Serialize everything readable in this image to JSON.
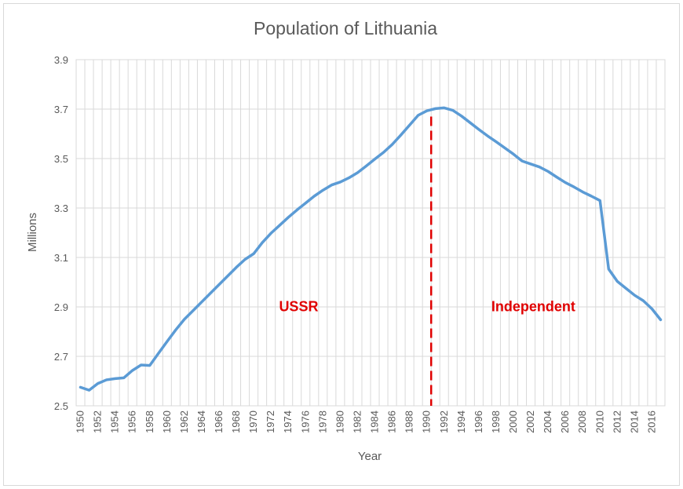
{
  "chart_data": {
    "type": "line",
    "title": "Population of Lithuania",
    "xlabel": "Year",
    "ylabel": "Millions",
    "ylim": [
      2.5,
      3.9
    ],
    "yticks": [
      "2.5",
      "2.7",
      "2.9",
      "3.1",
      "3.3",
      "3.5",
      "3.7",
      "3.9"
    ],
    "xlim": [
      1950,
      2017
    ],
    "xtick_labels": [
      "1950",
      "1952",
      "1954",
      "1956",
      "1958",
      "1960",
      "1962",
      "1964",
      "1966",
      "1968",
      "1970",
      "1972",
      "1974",
      "1976",
      "1978",
      "1980",
      "1982",
      "1984",
      "1986",
      "1988",
      "1990",
      "1992",
      "1994",
      "1996",
      "1998",
      "2000",
      "2002",
      "2004",
      "2006",
      "2008",
      "2010",
      "2012",
      "2014",
      "2016"
    ],
    "grid": true,
    "legend": "none",
    "series": [
      {
        "color": "#5b9bd5",
        "x": [
          1950,
          1951,
          1952,
          1953,
          1954,
          1955,
          1956,
          1957,
          1958,
          1959,
          1960,
          1961,
          1962,
          1963,
          1964,
          1965,
          1966,
          1967,
          1968,
          1969,
          1970,
          1971,
          1972,
          1973,
          1974,
          1975,
          1976,
          1977,
          1978,
          1979,
          1980,
          1981,
          1982,
          1983,
          1984,
          1985,
          1986,
          1987,
          1988,
          1989,
          1990,
          1991,
          1992,
          1993,
          1994,
          1995,
          1996,
          1997,
          1998,
          1999,
          2000,
          2001,
          2002,
          2003,
          2004,
          2005,
          2006,
          2007,
          2008,
          2009,
          2010,
          2011,
          2012,
          2013,
          2014,
          2015,
          2016,
          2017
        ],
        "y": [
          2.575,
          2.563,
          2.59,
          2.605,
          2.61,
          2.613,
          2.643,
          2.665,
          2.663,
          2.712,
          2.76,
          2.807,
          2.85,
          2.885,
          2.92,
          2.955,
          2.99,
          3.025,
          3.06,
          3.092,
          3.115,
          3.16,
          3.198,
          3.23,
          3.262,
          3.292,
          3.32,
          3.348,
          3.372,
          3.393,
          3.405,
          3.422,
          3.443,
          3.47,
          3.498,
          3.525,
          3.557,
          3.595,
          3.635,
          3.675,
          3.693,
          3.702,
          3.705,
          3.695,
          3.672,
          3.645,
          3.618,
          3.592,
          3.568,
          3.543,
          3.518,
          3.49,
          3.478,
          3.466,
          3.448,
          3.425,
          3.403,
          3.385,
          3.365,
          3.348,
          3.33,
          3.053,
          3.003,
          2.975,
          2.947,
          2.925,
          2.892,
          2.848
        ]
      }
    ],
    "divider": {
      "x": 1990.5,
      "color": "#e00000"
    },
    "annotations": [
      {
        "text": "USSR",
        "x": 1975.2,
        "y": 2.882,
        "color": "#e00000"
      },
      {
        "text": "Independent",
        "x": 2002.3,
        "y": 2.882,
        "color": "#e00000"
      }
    ],
    "colors": {
      "line": "#5b9bd5",
      "grid": "#d9d9d9",
      "text": "#595959",
      "annotation": "#e00000"
    }
  }
}
